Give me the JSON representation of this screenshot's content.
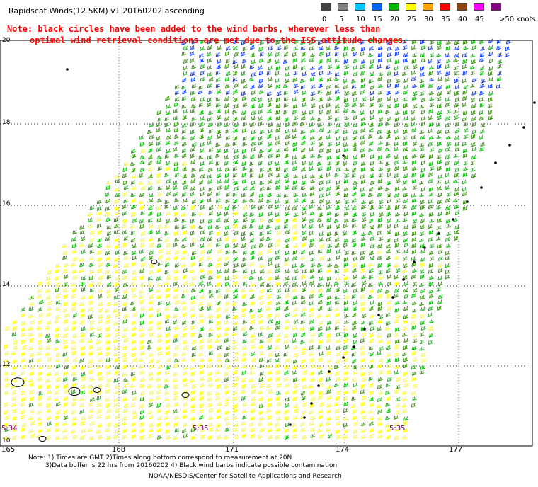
{
  "title": "Rapidscat Winds(12.5KM) v1 20160202 ascending",
  "note": {
    "line1": "Note: black circles have been added to the wind barbs, wherever less than",
    "line2": "optimal wind retrieval conditions are met due to the ISS attitude changes."
  },
  "legend": {
    "labels": [
      "0",
      "5",
      "10",
      "15",
      "20",
      "25",
      "30",
      "35",
      "40",
      "45",
      ">50 knots"
    ],
    "colors": [
      "#404040",
      "#808080",
      "#00c8ff",
      "#0064ff",
      "#00b400",
      "#ffff00",
      "#ffa500",
      "#ff0000",
      "#8b4513",
      "#ff00ff",
      "#800080"
    ]
  },
  "axes": {
    "y_ticks": [
      "20",
      "18",
      "16",
      "14",
      "12",
      "10"
    ],
    "x_ticks": [
      "165",
      "168",
      "171",
      "174",
      "177"
    ]
  },
  "pass_times": [
    "5:34",
    "5:35",
    "5:35"
  ],
  "footer": {
    "line1": "Note: 1) Times are GMT 2)Times along bottom correspond to measurement at 20N",
    "line2": "3)Data buffer is 22 hrs from 20160202 4) Black wind barbs indicate possible contamination",
    "line3": "NOAA/NESDIS/Center for Satellite Applications and Research"
  }
}
